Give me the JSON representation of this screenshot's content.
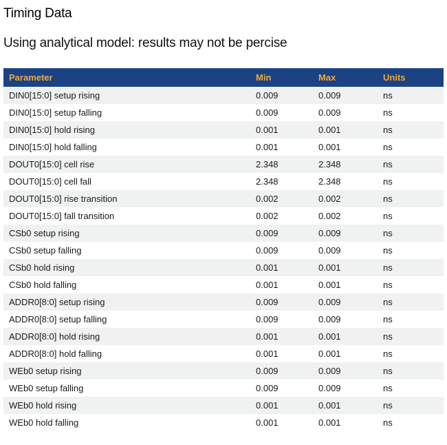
{
  "page": {
    "title": "Timing Data",
    "subtitle": "Using analytical model: results may not be percise"
  },
  "table": {
    "columns": [
      {
        "key": "parameter",
        "label": "Parameter"
      },
      {
        "key": "min",
        "label": "Min"
      },
      {
        "key": "max",
        "label": "Max"
      },
      {
        "key": "units",
        "label": "Units"
      }
    ],
    "rows": [
      {
        "parameter": "DIN0[15:0] setup rising",
        "min": "0.009",
        "max": "0.009",
        "units": "ns"
      },
      {
        "parameter": "DIN0[15:0] setup falling",
        "min": "0.009",
        "max": "0.009",
        "units": "ns"
      },
      {
        "parameter": "DIN0[15:0] hold rising",
        "min": "0.001",
        "max": "0.001",
        "units": "ns"
      },
      {
        "parameter": "DIN0[15:0] hold falling",
        "min": "0.001",
        "max": "0.001",
        "units": "ns"
      },
      {
        "parameter": "DOUT0[15:0] cell rise",
        "min": "2.348",
        "max": "2.348",
        "units": "ns"
      },
      {
        "parameter": "DOUT0[15:0] cell fall",
        "min": "2.348",
        "max": "2.348",
        "units": "ns"
      },
      {
        "parameter": "DOUT0[15:0] rise transition",
        "min": "0.002",
        "max": "0.002",
        "units": "ns"
      },
      {
        "parameter": "DOUT0[15:0] fall transition",
        "min": "0.002",
        "max": "0.002",
        "units": "ns"
      },
      {
        "parameter": "CSb0 setup rising",
        "min": "0.009",
        "max": "0.009",
        "units": "ns"
      },
      {
        "parameter": "CSb0 setup falling",
        "min": "0.009",
        "max": "0.009",
        "units": "ns"
      },
      {
        "parameter": "CSb0 hold rising",
        "min": "0.001",
        "max": "0.001",
        "units": "ns"
      },
      {
        "parameter": "CSb0 hold falling",
        "min": "0.001",
        "max": "0.001",
        "units": "ns"
      },
      {
        "parameter": "ADDR0[8:0] setup rising",
        "min": "0.009",
        "max": "0.009",
        "units": "ns"
      },
      {
        "parameter": "ADDR0[8:0] setup falling",
        "min": "0.009",
        "max": "0.009",
        "units": "ns"
      },
      {
        "parameter": "ADDR0[8:0] hold rising",
        "min": "0.001",
        "max": "0.001",
        "units": "ns"
      },
      {
        "parameter": "ADDR0[8:0] hold falling",
        "min": "0.001",
        "max": "0.001",
        "units": "ns"
      },
      {
        "parameter": "WEb0 setup rising",
        "min": "0.009",
        "max": "0.009",
        "units": "ns"
      },
      {
        "parameter": "WEb0 setup falling",
        "min": "0.009",
        "max": "0.009",
        "units": "ns"
      },
      {
        "parameter": "WEb0 hold rising",
        "min": "0.001",
        "max": "0.001",
        "units": "ns"
      },
      {
        "parameter": "WEb0 hold falling",
        "min": "0.001",
        "max": "0.001",
        "units": "ns"
      }
    ]
  },
  "colors": {
    "header_bg": "#1b4282",
    "header_text": "#f3a93c",
    "row_alt_bg": "#f0f1f1",
    "row_bg": "#ffffff",
    "text": "#1a1a1a"
  }
}
